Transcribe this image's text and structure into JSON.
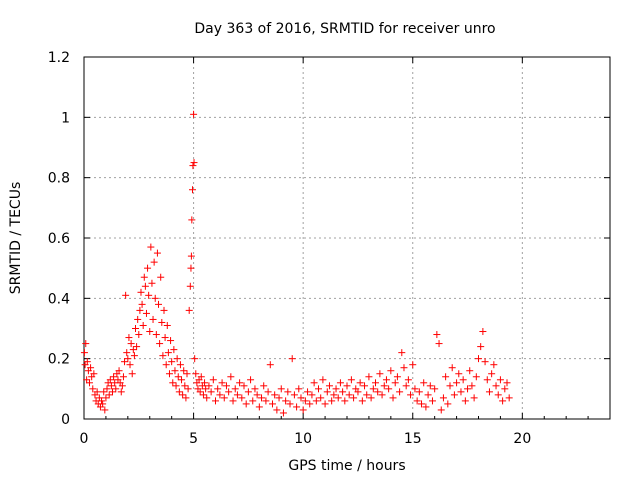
{
  "chart_data": {
    "type": "scatter",
    "title": "Day 363 of 2016, SRMTID for receiver unro",
    "xlabel": "GPS time / hours",
    "ylabel": "SRMTID / TECUs",
    "xlim": [
      0,
      24
    ],
    "ylim": [
      0,
      1.2
    ],
    "xticks": [
      0,
      5,
      10,
      15,
      20
    ],
    "yticks": [
      0,
      0.2,
      0.4,
      0.6,
      0.8,
      1,
      1.2
    ],
    "xtick_labels": [
      "0",
      "5",
      "10",
      "15",
      "20"
    ],
    "ytick_labels": [
      "0",
      "0.2",
      "0.4",
      "0.6",
      "0.8",
      "1",
      "1.2"
    ],
    "grid": true,
    "marker": "+",
    "marker_color": "#ff0000",
    "series": [
      {
        "name": "SRMTID",
        "x": [
          0.02,
          0.05,
          0.08,
          0.12,
          0.15,
          0.2,
          0.25,
          0.3,
          0.35,
          0.4,
          0.45,
          0.5,
          0.55,
          0.6,
          0.65,
          0.7,
          0.75,
          0.8,
          0.85,
          0.9,
          0.95,
          1.0,
          1.05,
          1.1,
          1.15,
          1.2,
          1.25,
          1.3,
          1.35,
          1.4,
          1.45,
          1.5,
          1.55,
          1.6,
          1.65,
          1.7,
          1.75,
          1.8,
          1.85,
          1.9,
          1.95,
          2.0,
          2.05,
          2.1,
          2.15,
          2.2,
          2.25,
          2.3,
          2.35,
          2.4,
          2.45,
          2.5,
          2.55,
          2.6,
          2.65,
          2.7,
          2.75,
          2.8,
          2.85,
          2.9,
          2.95,
          3.0,
          3.05,
          3.1,
          3.15,
          3.2,
          3.25,
          3.3,
          3.35,
          3.4,
          3.45,
          3.5,
          3.55,
          3.6,
          3.65,
          3.7,
          3.75,
          3.8,
          3.85,
          3.9,
          3.95,
          4.0,
          4.05,
          4.1,
          4.15,
          4.2,
          4.25,
          4.3,
          4.35,
          4.4,
          4.45,
          4.5,
          4.55,
          4.6,
          4.65,
          4.7,
          4.75,
          4.8,
          4.85,
          4.88,
          4.9,
          4.92,
          4.95,
          4.97,
          5.0,
          5.02,
          5.05,
          5.1,
          5.15,
          5.2,
          5.25,
          5.3,
          5.35,
          5.4,
          5.45,
          5.5,
          5.55,
          5.6,
          5.7,
          5.8,
          5.9,
          6.0,
          6.1,
          6.2,
          6.3,
          6.4,
          6.5,
          6.6,
          6.7,
          6.8,
          6.9,
          7.0,
          7.1,
          7.2,
          7.3,
          7.4,
          7.5,
          7.6,
          7.7,
          7.8,
          7.9,
          8.0,
          8.1,
          8.2,
          8.3,
          8.4,
          8.5,
          8.6,
          8.7,
          8.8,
          8.9,
          9.0,
          9.1,
          9.2,
          9.3,
          9.4,
          9.5,
          9.6,
          9.7,
          9.8,
          9.9,
          10.0,
          10.1,
          10.2,
          10.3,
          10.4,
          10.5,
          10.6,
          10.7,
          10.8,
          10.9,
          11.0,
          11.1,
          11.2,
          11.3,
          11.4,
          11.5,
          11.6,
          11.7,
          11.8,
          11.9,
          12.0,
          12.1,
          12.2,
          12.3,
          12.4,
          12.5,
          12.6,
          12.7,
          12.8,
          12.9,
          13.0,
          13.1,
          13.2,
          13.3,
          13.4,
          13.5,
          13.6,
          13.7,
          13.8,
          13.9,
          14.0,
          14.1,
          14.2,
          14.3,
          14.4,
          14.5,
          14.6,
          14.7,
          14.8,
          14.9,
          15.0,
          15.1,
          15.2,
          15.3,
          15.4,
          15.5,
          15.6,
          15.7,
          15.8,
          15.9,
          16.0,
          16.1,
          16.2,
          16.3,
          16.4,
          16.5,
          16.6,
          16.7,
          16.8,
          16.9,
          17.0,
          17.1,
          17.2,
          17.3,
          17.4,
          17.5,
          17.6,
          17.7,
          17.8,
          17.9,
          18.0,
          18.1,
          18.2,
          18.3,
          18.4,
          18.5,
          18.6,
          18.7,
          18.8,
          18.9,
          19.0,
          19.1,
          19.2,
          19.3,
          19.4
        ],
        "y": [
          0.22,
          0.18,
          0.25,
          0.13,
          0.19,
          0.16,
          0.12,
          0.17,
          0.14,
          0.1,
          0.15,
          0.08,
          0.06,
          0.09,
          0.05,
          0.07,
          0.04,
          0.06,
          0.05,
          0.09,
          0.03,
          0.07,
          0.1,
          0.12,
          0.08,
          0.13,
          0.11,
          0.09,
          0.14,
          0.12,
          0.1,
          0.15,
          0.13,
          0.16,
          0.12,
          0.09,
          0.11,
          0.14,
          0.19,
          0.41,
          0.22,
          0.2,
          0.27,
          0.18,
          0.25,
          0.15,
          0.23,
          0.21,
          0.3,
          0.24,
          0.33,
          0.28,
          0.36,
          0.42,
          0.38,
          0.31,
          0.47,
          0.44,
          0.35,
          0.5,
          0.41,
          0.29,
          0.57,
          0.45,
          0.33,
          0.52,
          0.4,
          0.28,
          0.55,
          0.38,
          0.25,
          0.47,
          0.32,
          0.21,
          0.36,
          0.27,
          0.18,
          0.31,
          0.22,
          0.15,
          0.26,
          0.19,
          0.12,
          0.23,
          0.16,
          0.11,
          0.2,
          0.14,
          0.09,
          0.18,
          0.13,
          0.08,
          0.16,
          0.11,
          0.07,
          0.15,
          0.1,
          0.36,
          0.44,
          0.5,
          0.54,
          0.66,
          0.76,
          0.84,
          1.01,
          0.85,
          0.2,
          0.15,
          0.12,
          0.1,
          0.13,
          0.09,
          0.14,
          0.11,
          0.08,
          0.12,
          0.1,
          0.07,
          0.11,
          0.09,
          0.13,
          0.06,
          0.1,
          0.08,
          0.12,
          0.07,
          0.11,
          0.09,
          0.14,
          0.06,
          0.1,
          0.08,
          0.12,
          0.07,
          0.11,
          0.05,
          0.09,
          0.13,
          0.06,
          0.1,
          0.08,
          0.04,
          0.07,
          0.11,
          0.06,
          0.09,
          0.18,
          0.05,
          0.08,
          0.03,
          0.07,
          0.1,
          0.02,
          0.06,
          0.09,
          0.05,
          0.2,
          0.08,
          0.04,
          0.1,
          0.07,
          0.03,
          0.06,
          0.09,
          0.05,
          0.08,
          0.12,
          0.06,
          0.1,
          0.07,
          0.13,
          0.05,
          0.09,
          0.11,
          0.06,
          0.08,
          0.1,
          0.07,
          0.12,
          0.09,
          0.06,
          0.11,
          0.08,
          0.13,
          0.07,
          0.1,
          0.09,
          0.12,
          0.06,
          0.11,
          0.08,
          0.14,
          0.07,
          0.1,
          0.12,
          0.09,
          0.15,
          0.08,
          0.11,
          0.13,
          0.1,
          0.16,
          0.07,
          0.12,
          0.14,
          0.09,
          0.22,
          0.17,
          0.11,
          0.13,
          0.08,
          0.18,
          0.1,
          0.06,
          0.09,
          0.05,
          0.12,
          0.04,
          0.08,
          0.11,
          0.06,
          0.1,
          0.28,
          0.25,
          0.03,
          0.07,
          0.14,
          0.05,
          0.11,
          0.17,
          0.08,
          0.12,
          0.15,
          0.09,
          0.13,
          0.06,
          0.1,
          0.16,
          0.11,
          0.07,
          0.14,
          0.2,
          0.24,
          0.29,
          0.19,
          0.13,
          0.09,
          0.15,
          0.18,
          0.11,
          0.08,
          0.13,
          0.06,
          0.1,
          0.12,
          0.07
        ]
      }
    ]
  }
}
